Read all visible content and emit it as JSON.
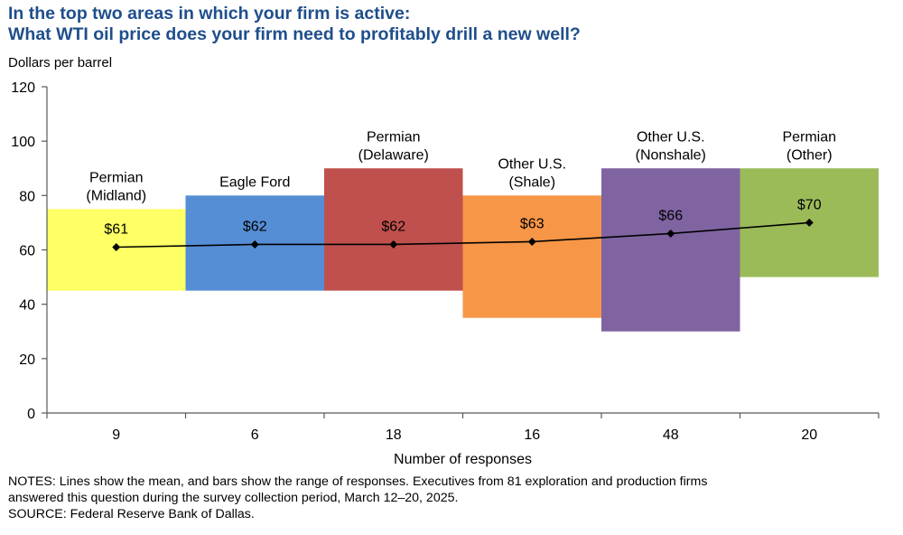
{
  "header": {
    "title_line1": "In the top two areas in which your firm is active:",
    "title_line2": "What WTI oil price does your firm need to profitably drill a new well?",
    "y_unit_label": "Dollars per barrel"
  },
  "notes": {
    "line1": "NOTES: Lines show the mean, and bars show the range of responses. Executives from 81 exploration and production firms",
    "line2": "answered this question during the survey collection period, March 12–20, 2025.",
    "source": "SOURCE: Federal Reserve Bank of Dallas."
  },
  "chart_data": {
    "type": "bar",
    "subtype": "floating-range-bars-with-mean-line",
    "title": "In the top two areas in which your firm is active: What WTI oil price does your firm need to profitably drill a new well?",
    "ylabel": "Dollars per barrel",
    "xlabel": "Number of responses",
    "ylim": [
      0,
      120
    ],
    "yticks": [
      0,
      20,
      40,
      60,
      80,
      100,
      120
    ],
    "grid": false,
    "legend": "none",
    "categories": [
      {
        "area": [
          "Permian",
          "(Midland)"
        ],
        "responses": "9",
        "range_low": 45,
        "range_high": 75,
        "mean": 61,
        "mean_label": "$61",
        "color": "#ffff66"
      },
      {
        "area": [
          "Eagle Ford"
        ],
        "responses": "6",
        "range_low": 45,
        "range_high": 80,
        "mean": 62,
        "mean_label": "$62",
        "color": "#558ed5"
      },
      {
        "area": [
          "Permian",
          "(Delaware)"
        ],
        "responses": "18",
        "range_low": 45,
        "range_high": 90,
        "mean": 62,
        "mean_label": "$62",
        "color": "#c0504d"
      },
      {
        "area": [
          "Other U.S.",
          "(Shale)"
        ],
        "responses": "16",
        "range_low": 35,
        "range_high": 80,
        "mean": 63,
        "mean_label": "$63",
        "color": "#f79646"
      },
      {
        "area": [
          "Other U.S.",
          "(Nonshale)"
        ],
        "responses": "48",
        "range_low": 30,
        "range_high": 90,
        "mean": 66,
        "mean_label": "$66",
        "color": "#8064a2"
      },
      {
        "area": [
          "Permian",
          "(Other)"
        ],
        "responses": "20",
        "range_low": 50,
        "range_high": 90,
        "mean": 70,
        "mean_label": "$70",
        "color": "#9bbb59"
      }
    ],
    "mean_line_color": "#000000"
  }
}
